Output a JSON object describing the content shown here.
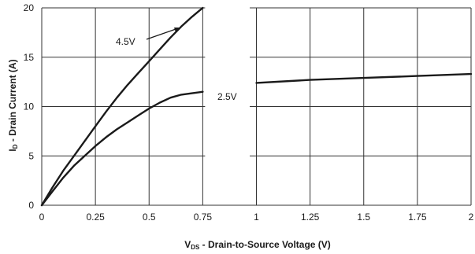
{
  "chart_data": {
    "type": "line",
    "xlabel": {
      "main": "V",
      "subscript": "DS",
      "rest": " - Drain-to-Source Voltage (V)"
    },
    "ylabel": {
      "main": "I",
      "subscript": "D",
      "rest": " - Drain Current (A)"
    },
    "xlim": [
      0,
      2
    ],
    "ylim": [
      0,
      20
    ],
    "x_ticks": [
      0,
      0.25,
      0.5,
      0.75,
      1,
      1.25,
      1.5,
      1.75,
      2
    ],
    "x_tick_labels": [
      "0",
      "0.25",
      "0.5",
      "0.75",
      "1",
      "1.25",
      "1.5",
      "1.75",
      "2"
    ],
    "y_ticks": [
      0,
      5,
      10,
      15,
      20
    ],
    "y_tick_labels": [
      "0",
      "5",
      "10",
      "15",
      "20"
    ],
    "grid": true,
    "line_color": "#1a1a1a",
    "grid_color": "#333333",
    "series": [
      {
        "name": "4.5V",
        "x": [
          0,
          0.05,
          0.1,
          0.15,
          0.2,
          0.25,
          0.3,
          0.35,
          0.4,
          0.45,
          0.5,
          0.55,
          0.6,
          0.65,
          0.7,
          0.75
        ],
        "y": [
          0,
          1.8,
          3.5,
          5.0,
          6.5,
          8.0,
          9.5,
          10.9,
          12.2,
          13.4,
          14.6,
          15.8,
          17.0,
          18.1,
          19.1,
          20.0
        ]
      },
      {
        "name": "2.5V",
        "x": [
          0,
          0.05,
          0.1,
          0.15,
          0.2,
          0.25,
          0.3,
          0.35,
          0.4,
          0.45,
          0.5,
          0.55,
          0.6,
          0.65,
          0.7,
          0.75,
          1.0,
          1.25,
          1.5,
          1.75,
          2.0
        ],
        "y": [
          0,
          1.4,
          2.8,
          4.0,
          5.0,
          6.0,
          6.9,
          7.7,
          8.4,
          9.1,
          9.8,
          10.4,
          10.9,
          11.2,
          11.35,
          11.5,
          12.4,
          12.7,
          12.9,
          13.1,
          13.3
        ]
      }
    ],
    "break_region": [
      0.75,
      0.98
    ]
  }
}
